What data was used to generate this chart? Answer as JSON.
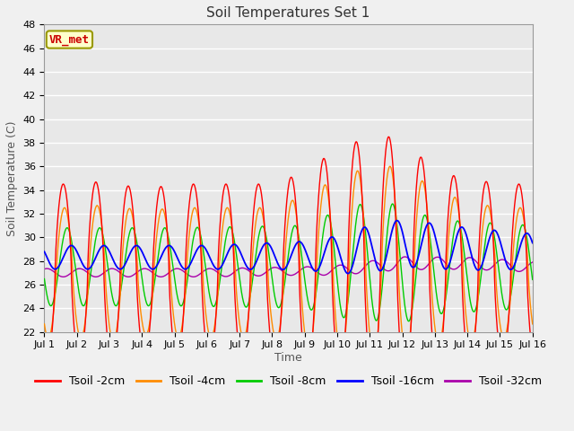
{
  "title": "Soil Temperatures Set 1",
  "xlabel": "Time",
  "ylabel": "Soil Temperature (C)",
  "ylim": [
    22,
    48
  ],
  "yticks": [
    22,
    24,
    26,
    28,
    30,
    32,
    34,
    36,
    38,
    40,
    42,
    44,
    46,
    48
  ],
  "xtick_labels": [
    "Jul 1",
    "Jul 2",
    "Jul 3",
    "Jul 4",
    "Jul 5",
    "Jul 6",
    "Jul 7",
    "Jul 8",
    "Jul 9",
    "Jul 10",
    "Jul 11",
    "Jul 12",
    "Jul 13",
    "Jul 14",
    "Jul 15",
    "Jul 16"
  ],
  "colors": {
    "Tsoil -2cm": "#ff0000",
    "Tsoil -4cm": "#ff8c00",
    "Tsoil -8cm": "#00cc00",
    "Tsoil -16cm": "#0000ff",
    "Tsoil -32cm": "#aa00aa"
  },
  "annotation_text": "VR_met",
  "plot_bg_color": "#e8e8e8",
  "fig_bg_color": "#f0f0f0",
  "grid_color": "#ffffff",
  "title_fontsize": 11,
  "axis_label_fontsize": 9,
  "tick_fontsize": 8,
  "legend_fontsize": 9
}
